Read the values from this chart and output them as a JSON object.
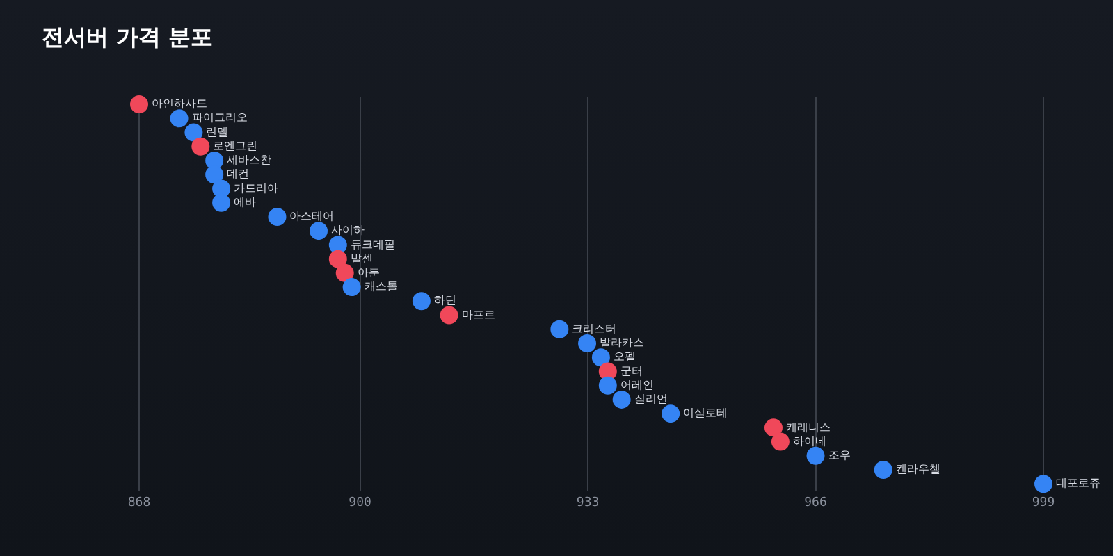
{
  "chart_data": {
    "type": "scatter",
    "title": "전서버 가격 분포",
    "orientation": "horizontal",
    "categories": [
      null,
      null,
      null,
      null,
      null,
      null,
      null,
      null,
      null,
      null,
      null,
      null,
      null,
      null,
      null,
      null,
      null,
      null,
      null,
      null,
      null,
      null,
      null,
      null,
      null,
      null,
      null,
      null
    ],
    "value_labels": [
      "아인하사드",
      "파이그리오",
      "린델",
      "로엔그린",
      "세바스찬",
      "데컨",
      "가드리아",
      "에바",
      "아스테어",
      "사이하",
      "듀크데필",
      "발센",
      "아툰",
      "캐스톨",
      "하딘",
      "마프르",
      "크리스터",
      "발라카스",
      "오펠",
      "군터",
      "어레인",
      "질리언",
      "이실로테",
      "케레니스",
      "하이네",
      "조우",
      "켄라우첼",
      "데포로쥬"
    ],
    "values": [
      868,
      873.8,
      875.9,
      876.9,
      878.9,
      878.9,
      879.9,
      879.9,
      888,
      894,
      896.8,
      896.8,
      897.8,
      898.8,
      908.9,
      912.9,
      928.9,
      932.9,
      934.9,
      935.9,
      935.9,
      937.9,
      945,
      959.9,
      960.9,
      966,
      975.8,
      999
    ],
    "colors": [
      "#f0485a",
      "#3584f4",
      "#3584f4",
      "#f0485a",
      "#3584f4",
      "#3584f4",
      "#3584f4",
      "#3584f4",
      "#3584f4",
      "#3584f4",
      "#3584f4",
      "#f0485a",
      "#f0485a",
      "#3584f4",
      "#3584f4",
      "#f0485a",
      "#3584f4",
      "#3584f4",
      "#3584f4",
      "#f0485a",
      "#3584f4",
      "#3584f4",
      "#3584f4",
      "#f0485a",
      "#f0485a",
      "#3584f4",
      "#3584f4",
      "#3584f4"
    ],
    "xlim": [
      868,
      999
    ],
    "xticks": [
      868,
      900,
      933,
      966,
      999
    ],
    "grid": "x",
    "legend": false,
    "marker": "circle",
    "tick_labels": "x"
  }
}
